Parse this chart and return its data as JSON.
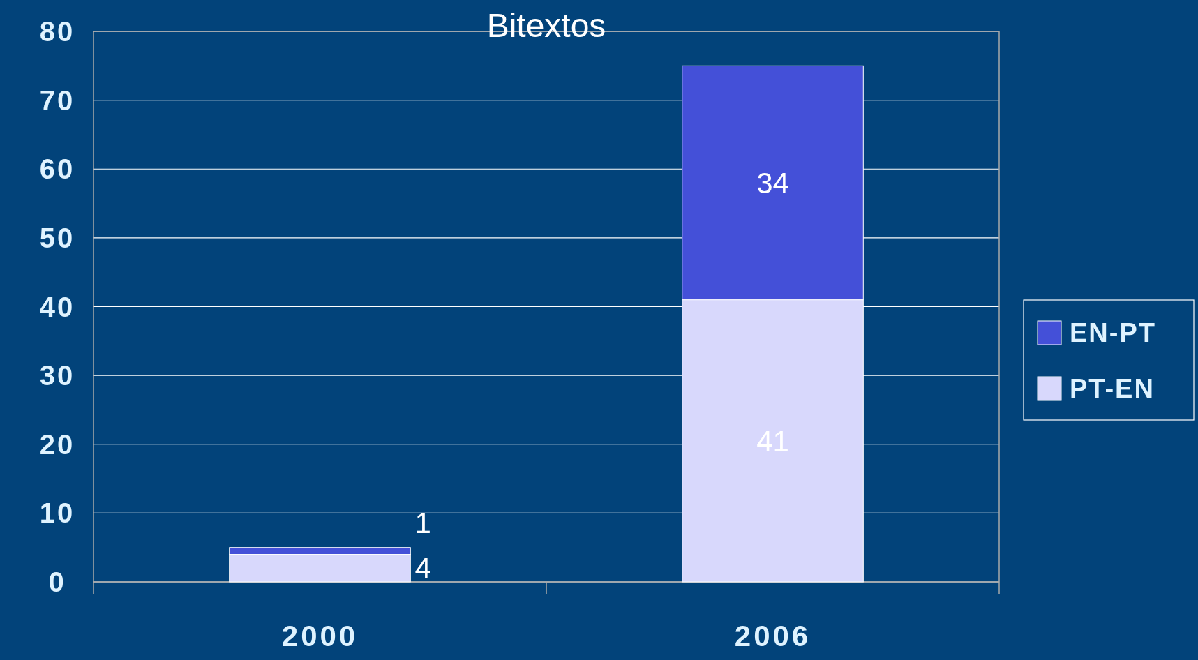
{
  "chart_data": {
    "type": "bar",
    "title": "Bitextos",
    "categories": [
      "2000",
      "2006"
    ],
    "stacked": true,
    "series": [
      {
        "name": "PT-EN",
        "color": "#d8d8fc",
        "values": [
          4,
          41
        ]
      },
      {
        "name": "EN-PT",
        "color": "#4450d8",
        "values": [
          1,
          34
        ]
      }
    ],
    "ylim": [
      0,
      80
    ],
    "yticks": [
      0,
      10,
      20,
      30,
      40,
      50,
      60,
      70,
      80
    ],
    "grid": "y",
    "legend": "right",
    "data_labels": true
  }
}
